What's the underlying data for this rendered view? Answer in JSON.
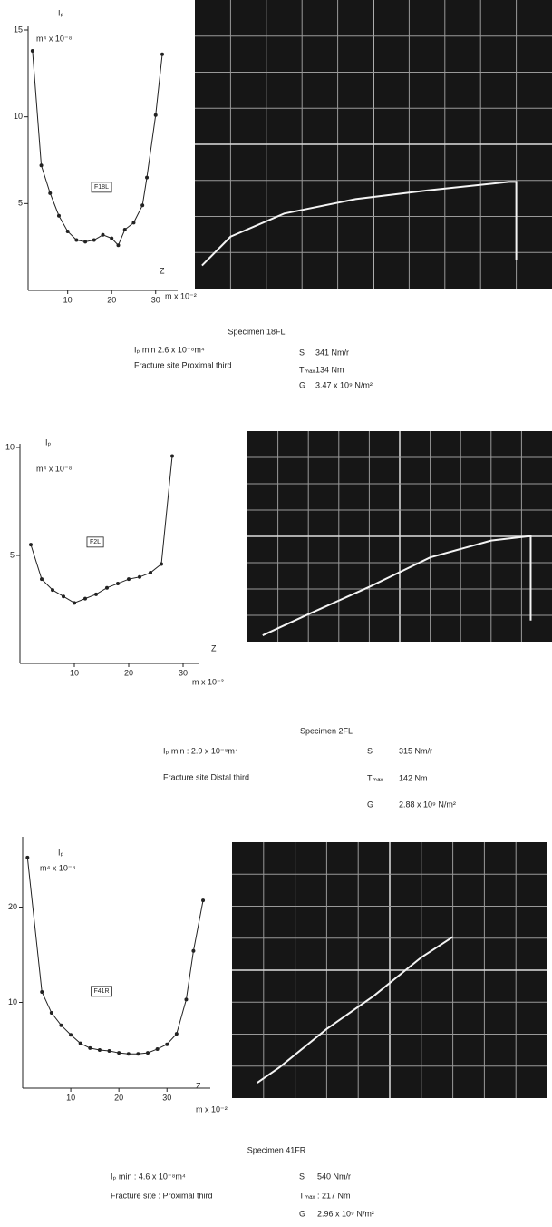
{
  "chart_data": [
    {
      "type": "line",
      "ylabel": "Iₚ",
      "ylabel_unit": "m⁴ x 10⁻⁸",
      "annotation": "F18L",
      "xlabel": "Z",
      "xlabel_unit": "m x 10⁻²",
      "x": [
        2,
        4,
        6,
        8,
        10,
        12,
        14,
        16,
        18,
        20,
        21.5,
        23,
        25,
        27,
        28,
        30,
        31.5
      ],
      "series": [
        {
          "color": "#222222",
          "values": [
            13.8,
            7.2,
            5.6,
            4.3,
            3.4,
            2.9,
            2.8,
            2.9,
            3.2,
            3.0,
            2.6,
            3.5,
            3.9,
            4.9,
            6.5,
            10.1,
            13.6
          ]
        }
      ],
      "xlim": [
        1,
        35
      ],
      "ylim": [
        0,
        15
      ],
      "xticks": [
        10,
        20,
        30
      ],
      "yticks": [
        5,
        10,
        15
      ]
    },
    {
      "type": "line",
      "ylabel": "Iₚ",
      "ylabel_unit": "m⁴ x 10⁻⁸",
      "annotation": "F2L",
      "xlabel": "Z",
      "xlabel_unit": "m x 10⁻²",
      "x": [
        2,
        4,
        6,
        8,
        10,
        12,
        14,
        16,
        18,
        20,
        22,
        24,
        26,
        28
      ],
      "series": [
        {
          "color": "#222222",
          "values": [
            5.5,
            3.9,
            3.4,
            3.1,
            2.8,
            3.0,
            3.2,
            3.5,
            3.7,
            3.9,
            4.0,
            4.2,
            4.6,
            9.6
          ]
        }
      ],
      "xlim": [
        0,
        33
      ],
      "ylim": [
        0,
        10
      ],
      "xticks": [
        10,
        20,
        30
      ],
      "yticks": [
        5,
        10
      ]
    },
    {
      "type": "line",
      "ylabel": "Iₚ",
      "ylabel_unit": "m⁴ x 10⁻⁸",
      "annotation": "F41R",
      "xlabel": "Z",
      "xlabel_unit": "m x 10⁻²",
      "x": [
        1,
        4,
        6,
        8,
        10,
        12,
        14,
        16,
        18,
        20,
        22,
        24,
        26,
        28,
        30,
        32,
        34,
        35.5,
        37.5
      ],
      "series": [
        {
          "color": "#222222",
          "values": [
            25.2,
            11.1,
            8.9,
            7.6,
            6.6,
            5.7,
            5.2,
            5.0,
            4.9,
            4.7,
            4.6,
            4.6,
            4.7,
            5.1,
            5.6,
            6.7,
            10.3,
            15.4,
            20.7
          ]
        }
      ],
      "xlim": [
        0,
        39
      ],
      "ylim": [
        1,
        27
      ],
      "xticks": [
        10,
        20,
        30
      ],
      "yticks": [
        10,
        20
      ]
    }
  ],
  "specimens": [
    {
      "title": "Specimen 18FL",
      "ip_min": "Iₚ min  2.6 x 10⁻⁸m⁴",
      "fracture_site": "Fracture site  Proximal third",
      "params": [
        [
          "S",
          "341 Nm/r"
        ],
        [
          "Tₘₐₓ",
          "134 Nm"
        ],
        [
          "G",
          "3.47 x 10⁹ N/m²"
        ]
      ]
    },
    {
      "title": "Specimen 2FL",
      "ip_min": "Iₚ min :  2.9 x 10⁻⁸m⁴",
      "fracture_site": "Fracture site  Distal third",
      "params": [
        [
          "S",
          "315 Nm/r"
        ],
        [
          "Tₘₐₓ",
          "142 Nm"
        ],
        [
          "G",
          "2.88 x 10⁹ N/m²"
        ]
      ]
    },
    {
      "title": "Specimen 41FR",
      "ip_min": "Iₚ min : 4.6 x 10⁻⁸m⁴",
      "fracture_site": "Fracture site : Proximal third",
      "params": [
        [
          "S",
          "540 Nm/r"
        ],
        [
          "Tₘₐₓ",
          ": 217 Nm"
        ],
        [
          "G",
          "2.96 x 10⁹ N/m²"
        ]
      ]
    }
  ]
}
